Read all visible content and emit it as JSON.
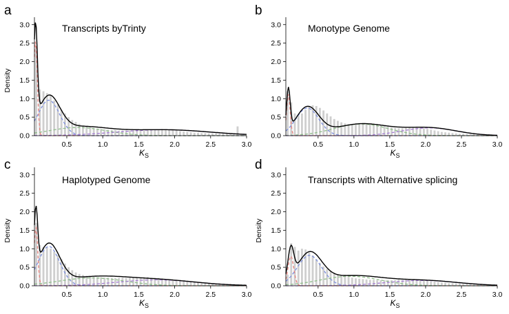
{
  "chart_data": [
    {
      "panel_letter": "a",
      "type": "bar",
      "title": "Transcripts byTrinty",
      "ylabel": "Density",
      "xlabel": "K",
      "xlabel_sub": "S",
      "xlim": [
        0.05,
        3.0
      ],
      "ylim": [
        0,
        3.2
      ],
      "xticks": [
        "0.5",
        "1.0",
        "1.5",
        "2.0",
        "2.5",
        "3.0"
      ],
      "yticks": [
        "0.0",
        "0.5",
        "1.0",
        "1.5",
        "2.0",
        "2.5",
        "3.0"
      ],
      "grid": false,
      "bin_width": 0.05,
      "hist_values": [
        2.4,
        1.25,
        1.2,
        1.15,
        1.1,
        0.95,
        0.85,
        0.7,
        0.6,
        0.5,
        0.42,
        0.37,
        0.32,
        0.28,
        0.26,
        0.23,
        0.21,
        0.19,
        0.18,
        0.17,
        0.16,
        0.15,
        0.15,
        0.14,
        0.14,
        0.14,
        0.13,
        0.14,
        0.13,
        0.14,
        0.14,
        0.15,
        0.16,
        0.17,
        0.17,
        0.18,
        0.17,
        0.16,
        0.15,
        0.14,
        0.12,
        0.11,
        0.1,
        0.09,
        0.08,
        0.08,
        0.07,
        0.07,
        0.06,
        0.06,
        0.06,
        0.06,
        0.07,
        0.05,
        0.05,
        0.06,
        0.25,
        0.05,
        0.04
      ],
      "components": [
        {
          "color": "#e8827d",
          "weight": 0.16,
          "mu": 0.065,
          "sigma": 0.025
        },
        {
          "color": "#7d8fe0",
          "weight": 0.36,
          "mu": 0.25,
          "sigma": 0.15
        },
        {
          "color": "#8fbf8a",
          "weight": 0.22,
          "mu": 0.65,
          "sigma": 0.4
        },
        {
          "color": "#a77dd6",
          "weight": 0.26,
          "mu": 1.85,
          "sigma": 0.65
        }
      ]
    },
    {
      "panel_letter": "b",
      "type": "bar",
      "title": "Monotype Genome",
      "ylabel": "",
      "xlabel": "K",
      "xlabel_sub": "S",
      "xlim": [
        0.05,
        3.0
      ],
      "ylim": [
        0,
        3.2
      ],
      "xticks": [
        "0.5",
        "1.0",
        "1.5",
        "2.0",
        "2.5",
        "3.0"
      ],
      "yticks": [
        "0.0",
        "0.5",
        "1.0",
        "1.5",
        "2.0",
        "2.5",
        "3.0"
      ],
      "grid": false,
      "bin_width": 0.05,
      "hist_values": [
        1.2,
        0.9,
        0.6,
        0.55,
        0.6,
        0.7,
        0.78,
        0.82,
        0.8,
        0.75,
        0.68,
        0.6,
        0.52,
        0.45,
        0.4,
        0.36,
        0.33,
        0.31,
        0.3,
        0.3,
        0.31,
        0.32,
        0.33,
        0.33,
        0.32,
        0.3,
        0.28,
        0.26,
        0.24,
        0.22,
        0.21,
        0.2,
        0.2,
        0.21,
        0.22,
        0.22,
        0.22,
        0.21,
        0.2,
        0.18,
        0.16,
        0.14,
        0.12,
        0.1,
        0.09,
        0.08,
        0.07,
        0.06,
        0.05,
        0.05,
        0.04,
        0.04,
        0.04,
        0.04,
        0.03,
        0.03,
        0.03,
        0.03,
        0.03
      ],
      "components": [
        {
          "color": "#e8827d",
          "weight": 0.07,
          "mu": 0.085,
          "sigma": 0.025
        },
        {
          "color": "#7d8fe0",
          "weight": 0.3,
          "mu": 0.35,
          "sigma": 0.16
        },
        {
          "color": "#8fbf8a",
          "weight": 0.3,
          "mu": 1.1,
          "sigma": 0.38
        },
        {
          "color": "#a77dd6",
          "weight": 0.2,
          "mu": 2.05,
          "sigma": 0.38
        }
      ]
    },
    {
      "panel_letter": "c",
      "type": "bar",
      "title": "Haplotyped Genome",
      "ylabel": "Density",
      "xlabel": "K",
      "xlabel_sub": "S",
      "xlim": [
        0.05,
        3.0
      ],
      "ylim": [
        0,
        3.2
      ],
      "xticks": [
        "0.5",
        "1.0",
        "1.5",
        "2.0",
        "2.5",
        "3.0"
      ],
      "yticks": [
        "0.0",
        "0.5",
        "1.0",
        "1.5",
        "2.0",
        "2.5",
        "3.0"
      ],
      "grid": false,
      "bin_width": 0.05,
      "hist_values": [
        1.7,
        1.1,
        1.05,
        1.05,
        1.0,
        0.92,
        0.82,
        0.72,
        0.6,
        0.5,
        0.42,
        0.36,
        0.32,
        0.29,
        0.27,
        0.25,
        0.24,
        0.23,
        0.23,
        0.22,
        0.22,
        0.21,
        0.21,
        0.21,
        0.22,
        0.21,
        0.22,
        0.22,
        0.23,
        0.22,
        0.23,
        0.23,
        0.22,
        0.22,
        0.21,
        0.2,
        0.18,
        0.17,
        0.16,
        0.14,
        0.13,
        0.12,
        0.11,
        0.1,
        0.09,
        0.09,
        0.08,
        0.08,
        0.07,
        0.07,
        0.06,
        0.06,
        0.06,
        0.05,
        0.05,
        0.05,
        0.04,
        0.04,
        0.04
      ],
      "components": [
        {
          "color": "#e8827d",
          "weight": 0.1,
          "mu": 0.07,
          "sigma": 0.025
        },
        {
          "color": "#7d8fe0",
          "weight": 0.4,
          "mu": 0.25,
          "sigma": 0.15
        },
        {
          "color": "#8fbf8a",
          "weight": 0.24,
          "mu": 0.85,
          "sigma": 0.45
        },
        {
          "color": "#a77dd6",
          "weight": 0.22,
          "mu": 1.75,
          "sigma": 0.55
        }
      ]
    },
    {
      "panel_letter": "d",
      "type": "bar",
      "title": "Transcripts with Alternative splicing",
      "ylabel": "Density",
      "xlabel": "K",
      "xlabel_sub": "S",
      "xlim": [
        0.05,
        3.0
      ],
      "ylim": [
        0,
        3.2
      ],
      "xticks": [
        "0.5",
        "1.0",
        "1.5",
        "2.0",
        "2.5",
        "3.0"
      ],
      "yticks": [
        "0.0",
        "0.5",
        "1.0",
        "1.5",
        "2.0",
        "2.5",
        "3.0"
      ],
      "grid": false,
      "bin_width": 0.05,
      "hist_values": [
        0.3,
        1.15,
        1.05,
        0.95,
        1.0,
        0.98,
        0.9,
        0.82,
        0.72,
        0.62,
        0.52,
        0.45,
        0.4,
        0.35,
        0.31,
        0.28,
        0.26,
        0.24,
        0.22,
        0.2,
        0.19,
        0.18,
        0.17,
        0.16,
        0.16,
        0.15,
        0.15,
        0.15,
        0.15,
        0.15,
        0.15,
        0.16,
        0.16,
        0.16,
        0.16,
        0.16,
        0.16,
        0.15,
        0.14,
        0.13,
        0.12,
        0.11,
        0.1,
        0.09,
        0.08,
        0.07,
        0.07,
        0.06,
        0.06,
        0.05,
        0.05,
        0.05,
        0.04,
        0.04,
        0.04,
        0.04,
        0.03,
        0.03,
        0.03
      ],
      "components": [
        {
          "color": "#e8827d",
          "weight": 0.08,
          "mu": 0.12,
          "sigma": 0.04
        },
        {
          "color": "#7d8fe0",
          "weight": 0.35,
          "mu": 0.38,
          "sigma": 0.17
        },
        {
          "color": "#8fbf8a",
          "weight": 0.27,
          "mu": 0.95,
          "sigma": 0.42
        },
        {
          "color": "#a77dd6",
          "weight": 0.18,
          "mu": 1.95,
          "sigma": 0.5
        }
      ]
    }
  ]
}
